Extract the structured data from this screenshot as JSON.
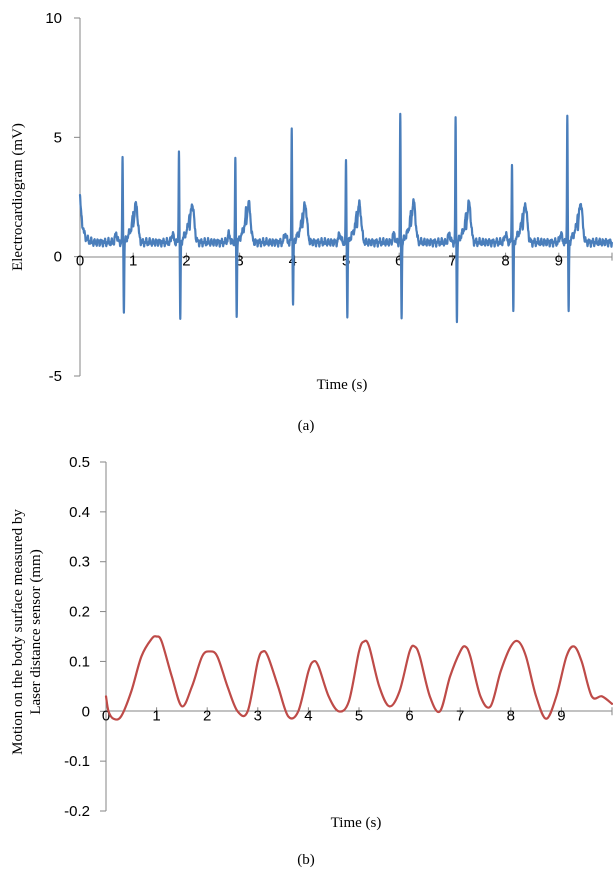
{
  "chart_data": [
    {
      "type": "line",
      "panel_label": "(a)",
      "xlabel": "Time (s)",
      "ylabel": "Electrocardiogram (mV)",
      "xlim": [
        0,
        10
      ],
      "ylim": [
        -5,
        10
      ],
      "x_ticks": [
        0,
        1,
        2,
        3,
        4,
        5,
        6,
        7,
        8,
        9
      ],
      "y_ticks": [
        -5,
        0,
        5,
        10
      ],
      "grid": false,
      "line_color": "#4a7ebb",
      "baseline_mv": 0.6,
      "beats": [
        {
          "t": 0.8,
          "r_peak": 4.1,
          "s_trough": -2.3,
          "t_wave": 2.45
        },
        {
          "t": 1.86,
          "r_peak": 4.5,
          "s_trough": -2.6,
          "t_wave": 2.45
        },
        {
          "t": 2.92,
          "r_peak": 4.1,
          "s_trough": -2.5,
          "t_wave": 2.5
        },
        {
          "t": 3.98,
          "r_peak": 5.4,
          "s_trough": -2.1,
          "t_wave": 2.45
        },
        {
          "t": 5.0,
          "r_peak": 4.1,
          "s_trough": -2.5,
          "t_wave": 2.45
        },
        {
          "t": 6.02,
          "r_peak": 5.9,
          "s_trough": -2.5,
          "t_wave": 2.55
        },
        {
          "t": 7.06,
          "r_peak": 5.7,
          "s_trough": -2.6,
          "t_wave": 2.5
        },
        {
          "t": 8.12,
          "r_peak": 4.0,
          "s_trough": -2.3,
          "t_wave": 2.45
        },
        {
          "t": 9.16,
          "r_peak": 6.0,
          "s_trough": -2.3,
          "t_wave": 2.5
        }
      ]
    },
    {
      "type": "line",
      "panel_label": "(b)",
      "xlabel": "Time (s)",
      "ylabel_line1": "Motion on the body surface measured by",
      "ylabel_line2": "Laser distance sensor (mm)",
      "xlim": [
        0,
        10
      ],
      "ylim": [
        -0.2,
        0.5
      ],
      "x_ticks": [
        0,
        1,
        2,
        3,
        4,
        5,
        6,
        7,
        8,
        9
      ],
      "y_ticks": [
        "0.5",
        "0.4",
        "0.3",
        "0.2",
        "0.1",
        "0",
        "-0.1",
        "-0.2"
      ],
      "grid": false,
      "line_color": "#be4b48",
      "series": {
        "x": [
          0,
          0.05,
          0.15,
          0.3,
          0.5,
          0.7,
          0.9,
          1.0,
          1.1,
          1.3,
          1.5,
          1.7,
          1.9,
          2.05,
          2.2,
          2.4,
          2.6,
          2.8,
          3.0,
          3.1,
          3.2,
          3.4,
          3.6,
          3.8,
          4.0,
          4.1,
          4.2,
          4.4,
          4.6,
          4.8,
          5.0,
          5.1,
          5.2,
          5.4,
          5.6,
          5.8,
          6.0,
          6.1,
          6.2,
          6.4,
          6.6,
          6.8,
          7.0,
          7.1,
          7.2,
          7.4,
          7.6,
          7.8,
          8.0,
          8.15,
          8.3,
          8.5,
          8.7,
          8.9,
          9.1,
          9.25,
          9.4,
          9.6,
          9.8,
          10.0
        ],
        "y": [
          0.03,
          0.0,
          -0.015,
          -0.01,
          0.04,
          0.11,
          0.145,
          0.15,
          0.14,
          0.07,
          0.01,
          0.05,
          0.11,
          0.12,
          0.11,
          0.05,
          0.0,
          0.0,
          0.1,
          0.12,
          0.11,
          0.05,
          -0.01,
          0.0,
          0.08,
          0.1,
          0.09,
          0.03,
          0.0,
          0.02,
          0.12,
          0.14,
          0.13,
          0.05,
          0.01,
          0.04,
          0.12,
          0.13,
          0.11,
          0.03,
          0.0,
          0.07,
          0.12,
          0.13,
          0.11,
          0.03,
          0.01,
          0.08,
          0.13,
          0.14,
          0.11,
          0.03,
          -0.015,
          0.03,
          0.11,
          0.13,
          0.1,
          0.03,
          0.03,
          0.015
        ]
      }
    }
  ]
}
